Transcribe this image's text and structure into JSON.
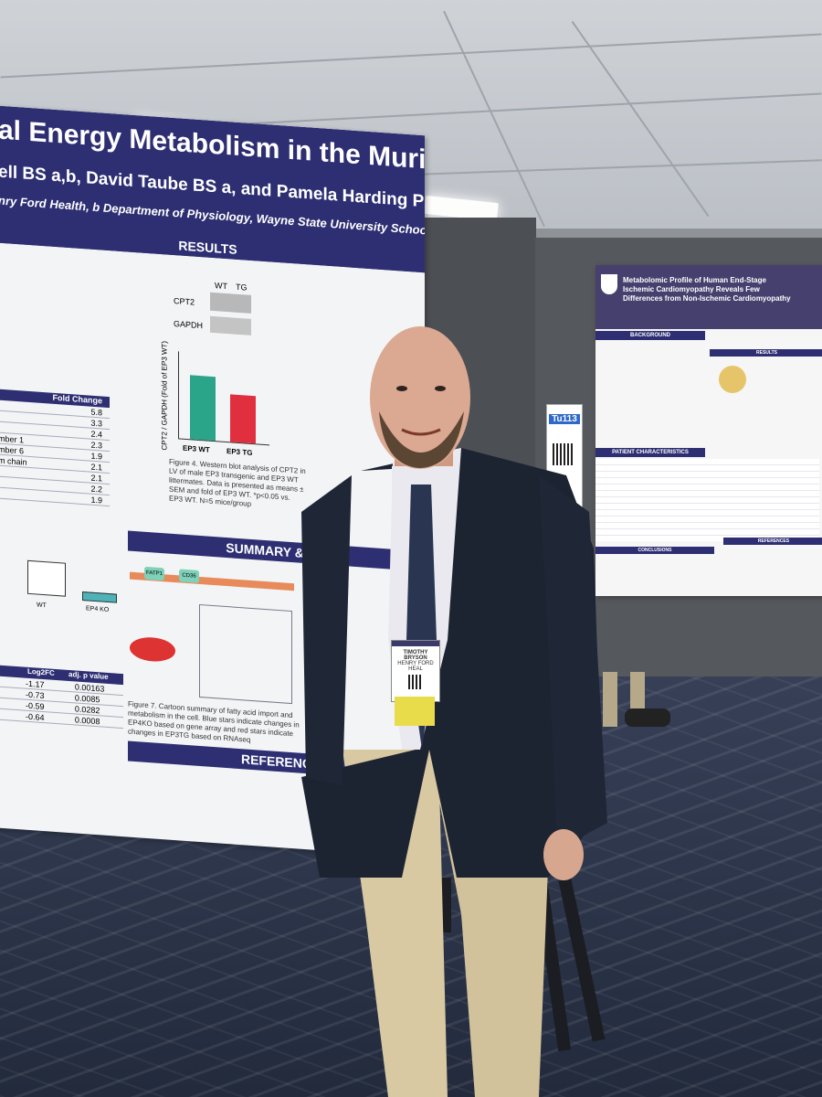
{
  "poster_left": {
    "title_line": "al Energy Metabolism in the Murine Heart",
    "authors_line": "ell BS a,b, David Taube BS a, and Pamela Harding PhD a,b",
    "affil_line": "nry Ford Health, b Department of Physiology, Wayne State University School of Medicine, Detroit MI, USA",
    "results_header": "RESULTS",
    "summary_header": "SUMMARY & CO",
    "references_header": "REFERENC",
    "western_label_wt": "WT",
    "western_label_tg": "TG",
    "cpt2_label": "CPT2",
    "gapdh_label": "GAPDH",
    "bar_label_wt": "EP3 WT",
    "bar_label_tg": "EP3 TG",
    "yaxis_label": "CPT2 / GAPDH (Fold of EP3 WT)",
    "figure4_caption": "Figure 4. Western blot analysis of CPT2 in LV of male EP3 transgenic and EP3 WT littermates. Data is presented as means ± SEM and fold of EP3 WT. *p<0.05 vs. EP3 WT. N=5 mice/group",
    "figure7_caption": "Figure 7. Cartoon summary of fatty acid import and metabolism in the cell. Blue stars indicate changes in EP4KO based on gene array and red stars indicate changes in EP3TG based on RNAseq",
    "fold_change_header": "Fold Change",
    "fold_change_values": [
      "5.8",
      "3.3",
      "2.4",
      "2.3",
      "1.9",
      "2.1",
      "2.1",
      "2.2",
      "1.9"
    ],
    "fold_rows_text": [
      "",
      "",
      "",
      "mber 1",
      "mber 6",
      "m chain",
      "",
      "",
      ""
    ],
    "log2fc_header": "Log2FC",
    "adjp_header": "adj. p value",
    "log2fc_values": [
      "-1.17",
      "-0.73",
      "-0.59",
      "-0.64"
    ],
    "adjp_values": [
      "0.00163",
      "0.0085",
      "0.0282",
      "0.0008"
    ],
    "wt_label": "WT",
    "ep4ko_label": "EP4 KO",
    "fatp1_label": "FATP1",
    "cd36_label": "CD36"
  },
  "poster_right": {
    "title": "Metabolomic Profile of Human End-Stage Ischemic Cardiomyopathy Reveals Few Differences from Non-Ischemic Cardiomyopathy",
    "background_header": "BACKGROUND",
    "patient_header": "PATIENT CHARACTERISTICS",
    "conclusions_header": "CONCLUSIONS",
    "references_header": "REFERENCES",
    "results_header": "RESULTS"
  },
  "board_tag": "Tu113",
  "name_badge": {
    "first_name": "TIMOTHY",
    "last_name": "BRYSON",
    "org": "HENRY FORD HEAL"
  },
  "colors": {
    "poster_header": "#2e2f73",
    "bar_wt": "#2aa58a",
    "bar_tg": "#e0303f",
    "blazer": "#1c2331",
    "khaki": "#d8c9a3"
  }
}
